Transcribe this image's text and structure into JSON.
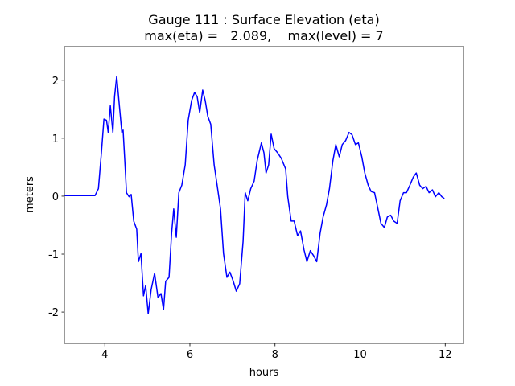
{
  "chart_data": {
    "type": "line",
    "title": "Gauge 111 : Surface Elevation (eta)",
    "subtitle": "max(eta) =   2.089,    max(level) = 7",
    "xlabel": "hours",
    "ylabel": "meters",
    "xlim": [
      3.05,
      12.43
    ],
    "ylim": [
      -2.54,
      2.58
    ],
    "xticks": [
      4,
      6,
      8,
      10,
      12
    ],
    "yticks": [
      -2,
      -1,
      0,
      1,
      2
    ],
    "grid": false,
    "x": [
      3.06,
      3.77,
      3.85,
      3.92,
      3.98,
      4.04,
      4.08,
      4.13,
      4.19,
      4.23,
      4.28,
      4.34,
      4.4,
      4.43,
      4.47,
      4.51,
      4.57,
      4.62,
      4.68,
      4.75,
      4.79,
      4.85,
      4.91,
      4.96,
      5.02,
      5.09,
      5.17,
      5.25,
      5.32,
      5.38,
      5.43,
      5.51,
      5.57,
      5.62,
      5.68,
      5.74,
      5.81,
      5.89,
      5.96,
      6.04,
      6.11,
      6.17,
      6.23,
      6.3,
      6.36,
      6.42,
      6.49,
      6.57,
      6.64,
      6.72,
      6.79,
      6.87,
      6.94,
      7.02,
      7.09,
      7.17,
      7.25,
      7.3,
      7.36,
      7.43,
      7.51,
      7.58,
      7.68,
      7.74,
      7.79,
      7.85,
      7.91,
      7.98,
      8.06,
      8.15,
      8.25,
      8.3,
      8.38,
      8.45,
      8.53,
      8.6,
      8.68,
      8.75,
      8.83,
      8.91,
      8.98,
      9.06,
      9.13,
      9.21,
      9.28,
      9.36,
      9.43,
      9.51,
      9.58,
      9.66,
      9.74,
      9.81,
      9.89,
      9.96,
      10.04,
      10.11,
      10.19,
      10.26,
      10.34,
      10.42,
      10.49,
      10.57,
      10.64,
      10.72,
      10.79,
      10.87,
      10.94,
      11.02,
      11.09,
      11.17,
      11.25,
      11.32,
      11.4,
      11.47,
      11.55,
      11.62,
      11.7,
      11.77,
      11.85,
      11.92,
      11.98
    ],
    "series": [
      {
        "name": "eta",
        "color": "#0000ff",
        "values": [
          0.01,
          0.01,
          0.13,
          0.75,
          1.33,
          1.31,
          1.1,
          1.56,
          1.1,
          1.72,
          2.07,
          1.58,
          1.1,
          1.14,
          0.61,
          0.06,
          -0.01,
          0.03,
          -0.43,
          -0.57,
          -1.13,
          -0.99,
          -1.72,
          -1.54,
          -2.03,
          -1.61,
          -1.33,
          -1.75,
          -1.68,
          -1.96,
          -1.47,
          -1.4,
          -0.64,
          -0.22,
          -0.71,
          0.06,
          0.19,
          0.54,
          1.31,
          1.65,
          1.79,
          1.72,
          1.44,
          1.83,
          1.65,
          1.38,
          1.24,
          0.54,
          0.19,
          -0.22,
          -0.99,
          -1.4,
          -1.31,
          -1.47,
          -1.64,
          -1.51,
          -0.78,
          0.06,
          -0.08,
          0.13,
          0.26,
          0.61,
          0.92,
          0.75,
          0.4,
          0.54,
          1.07,
          0.82,
          0.75,
          0.65,
          0.47,
          -0.01,
          -0.43,
          -0.43,
          -0.68,
          -0.6,
          -0.92,
          -1.13,
          -0.94,
          -1.03,
          -1.13,
          -0.64,
          -0.36,
          -0.15,
          0.13,
          0.61,
          0.89,
          0.68,
          0.89,
          0.96,
          1.1,
          1.06,
          0.89,
          0.92,
          0.68,
          0.4,
          0.19,
          0.08,
          0.06,
          -0.22,
          -0.47,
          -0.54,
          -0.36,
          -0.33,
          -0.43,
          -0.47,
          -0.08,
          0.06,
          0.06,
          0.19,
          0.33,
          0.4,
          0.19,
          0.13,
          0.17,
          0.06,
          0.11,
          -0.01,
          0.06,
          -0.01,
          -0.04
        ]
      }
    ]
  }
}
